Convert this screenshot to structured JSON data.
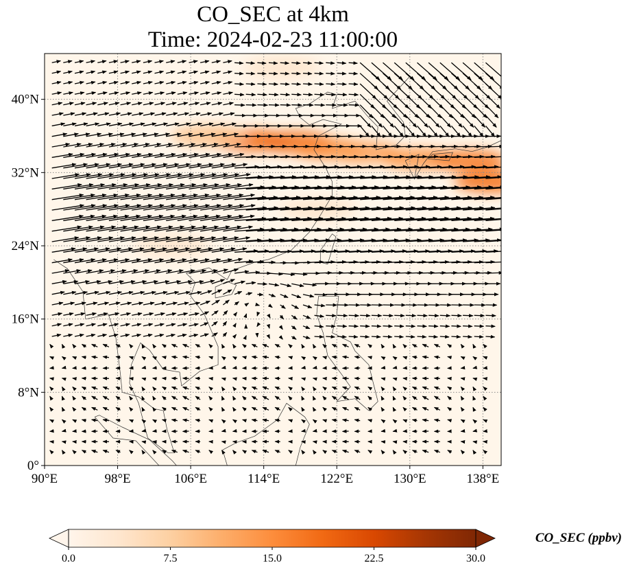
{
  "title": {
    "line1": "CO_SEC at 4km",
    "line2": "Time: 2024-02-23 11:00:00"
  },
  "map": {
    "lon_range": [
      90,
      140
    ],
    "lat_range": [
      0,
      45
    ],
    "lon_ticks": [
      {
        "value": 90,
        "label": "90°E"
      },
      {
        "value": 98,
        "label": "98°E"
      },
      {
        "value": 106,
        "label": "106°E"
      },
      {
        "value": 114,
        "label": "114°E"
      },
      {
        "value": 122,
        "label": "122°E"
      },
      {
        "value": 130,
        "label": "130°E"
      },
      {
        "value": 138,
        "label": "138°E"
      }
    ],
    "lat_ticks": [
      {
        "value": 0,
        "label": "0°"
      },
      {
        "value": 8,
        "label": "8°N"
      },
      {
        "value": 16,
        "label": "16°N"
      },
      {
        "value": 24,
        "label": "24°N"
      },
      {
        "value": 32,
        "label": "32°N"
      },
      {
        "value": 40,
        "label": "40°N"
      }
    ],
    "gridlines": "dotted",
    "background_color": "#fff6ea",
    "plumes": [
      {
        "lon": 112.5,
        "lat": 35.5,
        "value": 18
      },
      {
        "lon": 117.5,
        "lat": 35.3,
        "value": 19
      },
      {
        "lon": 121,
        "lat": 34.6,
        "value": 15
      },
      {
        "lon": 125,
        "lat": 34.2,
        "value": 13
      },
      {
        "lon": 131,
        "lat": 33.5,
        "value": 14
      },
      {
        "lon": 136.5,
        "lat": 33.3,
        "value": 17
      },
      {
        "lon": 139,
        "lat": 31.0,
        "value": 18
      },
      {
        "lon": 108,
        "lat": 36.0,
        "value": 9
      },
      {
        "lon": 104,
        "lat": 24.0,
        "value": 4
      },
      {
        "lon": 120,
        "lat": 28.0,
        "value": 4
      },
      {
        "lon": 116,
        "lat": 43.5,
        "value": 4
      }
    ]
  },
  "colorbar": {
    "min": 0,
    "max": 30,
    "ticks": [
      "0.0",
      "7.5",
      "15.0",
      "22.5",
      "30.0"
    ],
    "label": "CO_SEC (ppbv)",
    "colormap": [
      "#fff5eb",
      "#fee6ce",
      "#fdd0a2",
      "#fdae6b",
      "#fd8d3c",
      "#f16913",
      "#d94801",
      "#a63603",
      "#7f2704"
    ],
    "extend": "both"
  }
}
